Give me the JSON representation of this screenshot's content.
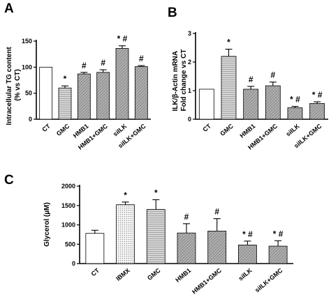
{
  "chart_data": [
    {
      "id": "A",
      "type": "bar",
      "panel_label": "A",
      "ylabel": "Intracellular TG content\n(% vs CT)",
      "ylim": [
        0,
        150
      ],
      "yticks": [
        0,
        50,
        100,
        150
      ],
      "categories": [
        "CT",
        "GMC",
        "HMB1",
        "HMB1+GMC",
        "siILK",
        "siILK+GMC"
      ],
      "values": [
        100,
        60,
        87,
        90,
        136,
        101
      ],
      "errors": [
        0,
        4,
        3,
        5,
        5,
        2
      ],
      "annotations": [
        "",
        "*",
        "#",
        "#",
        "* #",
        "#"
      ],
      "fills": [
        "white",
        "hgrey",
        "dgrey",
        "dgrey",
        "dgrey",
        "dgrey"
      ]
    },
    {
      "id": "B",
      "type": "bar",
      "panel_label": "B",
      "ylabel": "ILK/β-Actin mRNA\nFold change vs CT",
      "ylim": [
        0,
        3
      ],
      "yticks": [
        0,
        1,
        2,
        3
      ],
      "categories": [
        "CT",
        "GMC",
        "HMB1",
        "HMB1+GMC",
        "siILK",
        "siILK+GMC"
      ],
      "values": [
        1.05,
        2.2,
        1.05,
        1.17,
        0.4,
        0.55
      ],
      "errors": [
        0,
        0.25,
        0.1,
        0.13,
        0.05,
        0.06
      ],
      "annotations": [
        "",
        "*",
        "#",
        "#",
        "* #",
        "* #"
      ],
      "fills": [
        "white",
        "hgrey",
        "dgrey",
        "dgrey",
        "dgrey",
        "dgrey"
      ]
    },
    {
      "id": "C",
      "type": "bar",
      "panel_label": "C",
      "ylabel": "Glycerol (µM)",
      "ylim": [
        0,
        2000
      ],
      "yticks": [
        0,
        500,
        1000,
        1500,
        2000
      ],
      "categories": [
        "CT",
        "IBMX",
        "GMC",
        "HMB1",
        "HMB1+GMC",
        "siILK",
        "siILK+GMC"
      ],
      "values": [
        780,
        1520,
        1400,
        790,
        840,
        480,
        450
      ],
      "errors": [
        80,
        70,
        250,
        240,
        320,
        100,
        140
      ],
      "annotations": [
        "",
        "*",
        "*",
        "#",
        "#",
        "* #",
        "* #"
      ],
      "fills": [
        "white",
        "dots",
        "hgrey",
        "dgrey",
        "dgrey",
        "dgrey",
        "dgrey"
      ]
    }
  ],
  "styles": {
    "white": "#ffffff",
    "hgrey": "#c8c8c8",
    "dgrey": "#9a9a9a",
    "dots": "#e6e6e6"
  }
}
